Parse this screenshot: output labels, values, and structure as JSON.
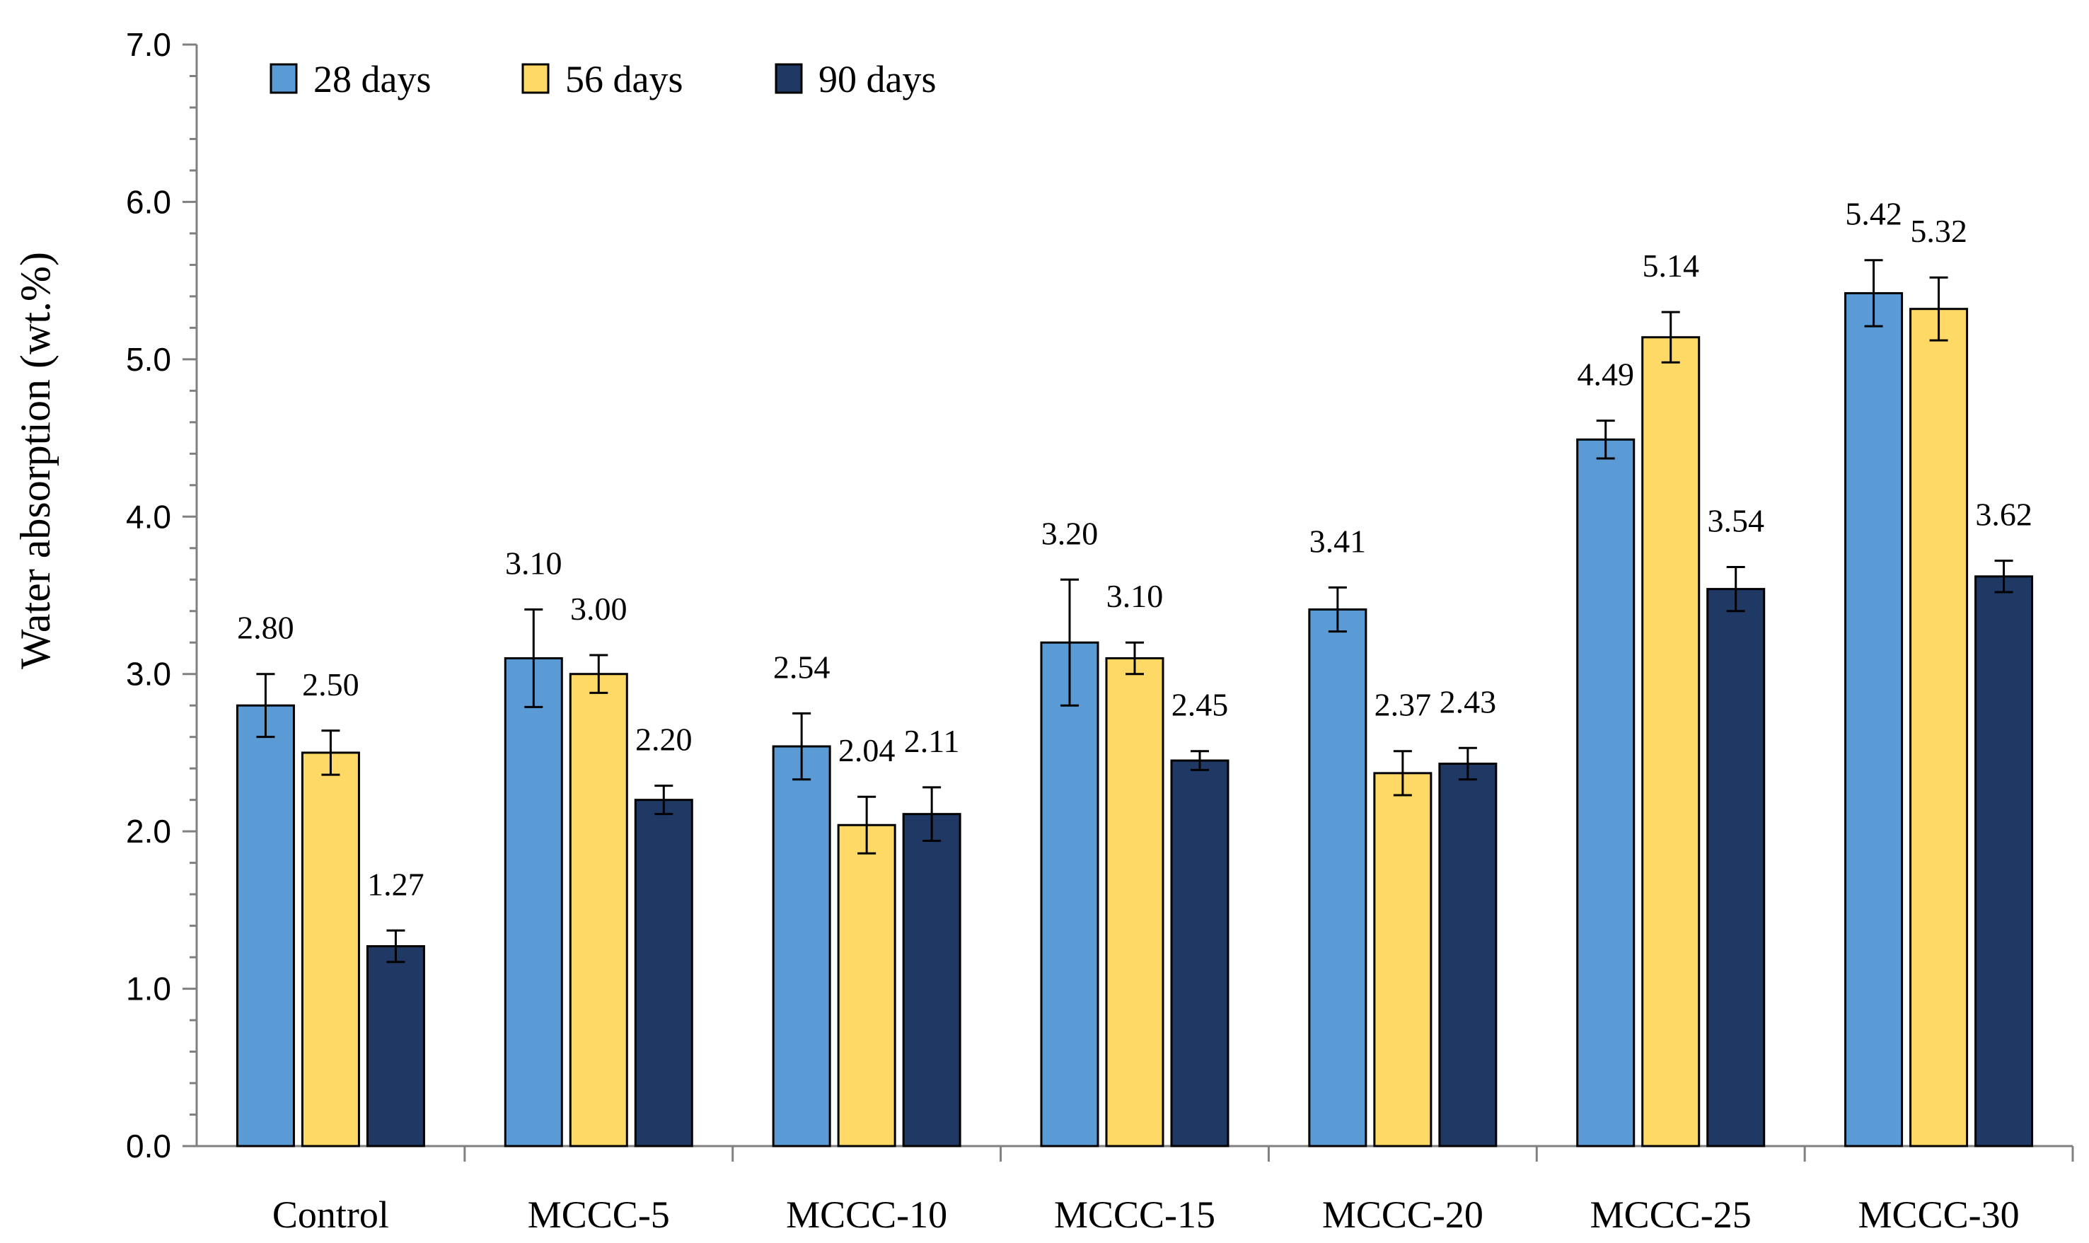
{
  "chart_data": {
    "type": "bar",
    "title": "",
    "xlabel": "",
    "ylabel": "Water absorption (wt.%)",
    "ylim": [
      0.0,
      7.0
    ],
    "y_ticks": [
      "0.0",
      "1.0",
      "2.0",
      "3.0",
      "4.0",
      "5.0",
      "6.0",
      "7.0"
    ],
    "grid": false,
    "legend_position": "top-left",
    "error_bars": true,
    "categories": [
      "Control",
      "MCCC-5",
      "MCCC-10",
      "MCCC-15",
      "MCCC-20",
      "MCCC-25",
      "MCCC-30"
    ],
    "series": [
      {
        "name": "28 days",
        "color": "#5B9BD5",
        "values": [
          2.8,
          3.1,
          2.54,
          3.2,
          3.41,
          4.49,
          5.42
        ],
        "labels": [
          "2.80",
          "3.10",
          "2.54",
          "3.20",
          "3.41",
          "4.49",
          "5.42"
        ],
        "errors": [
          0.2,
          0.31,
          0.21,
          0.4,
          0.14,
          0.12,
          0.21
        ]
      },
      {
        "name": "56 days",
        "color": "#FFD966",
        "values": [
          2.5,
          3.0,
          2.04,
          3.1,
          2.37,
          5.14,
          5.32
        ],
        "labels": [
          "2.50",
          "3.00",
          "2.04",
          "3.10",
          "2.37",
          "5.14",
          "5.32"
        ],
        "errors": [
          0.14,
          0.12,
          0.18,
          0.1,
          0.14,
          0.16,
          0.2
        ]
      },
      {
        "name": "90 days",
        "color": "#203864",
        "values": [
          1.27,
          2.2,
          2.11,
          2.45,
          2.43,
          3.54,
          3.62
        ],
        "labels": [
          "1.27",
          "2.20",
          "2.11",
          "2.45",
          "2.43",
          "3.54",
          "3.62"
        ],
        "errors": [
          0.1,
          0.09,
          0.17,
          0.06,
          0.1,
          0.14,
          0.1
        ]
      }
    ]
  }
}
